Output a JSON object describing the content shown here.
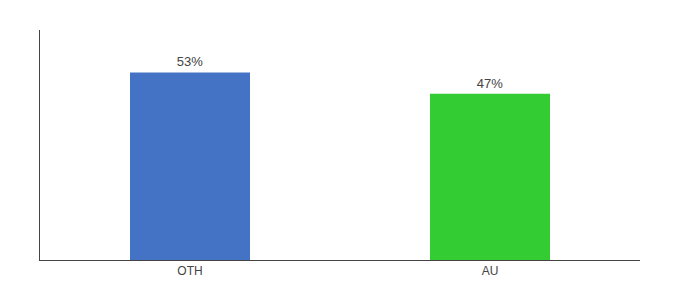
{
  "chart_data": {
    "type": "bar",
    "categories": [
      "OTH",
      "AU"
    ],
    "values": [
      53,
      47
    ],
    "colors": [
      "#4472c4",
      "#33cc33"
    ],
    "value_labels": [
      "53%",
      "47%"
    ],
    "data_labels": true,
    "ylim": [
      0,
      65
    ],
    "tick_labels": "x",
    "grid": false
  }
}
